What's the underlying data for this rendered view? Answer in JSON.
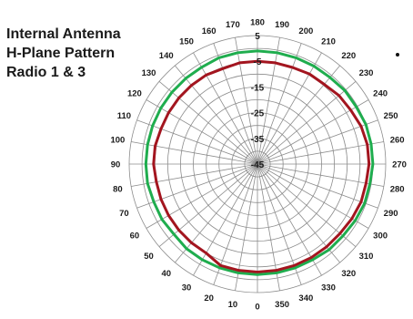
{
  "title_lines": [
    "Internal Antenna",
    "H-Plane Pattern",
    "Radio 1 & 3"
  ],
  "colors": {
    "background": "#ffffff",
    "grid": "#8c8c8c",
    "text": "#1a1a1a",
    "series_outer": "#1fad4e",
    "series_inner": "#a3151f"
  },
  "chart_data": {
    "type": "polar-line",
    "title": "Internal Antenna H-Plane Pattern Radio 1 & 3",
    "angle_unit": "degrees",
    "angle_orientation": "0 at bottom, 180 at top, increasing clockwise on screen",
    "angle_ticks": [
      0,
      10,
      20,
      30,
      40,
      50,
      60,
      70,
      80,
      90,
      100,
      110,
      120,
      130,
      140,
      150,
      160,
      170,
      180,
      190,
      200,
      210,
      220,
      230,
      240,
      250,
      260,
      270,
      280,
      290,
      300,
      310,
      320,
      330,
      340,
      350
    ],
    "angle_tick_labels": [
      "0",
      "10",
      "20",
      "30",
      "40",
      "50",
      "60",
      "70",
      "80",
      "90",
      "100",
      "110",
      "120",
      "130",
      "140",
      "150",
      "160",
      "170",
      "180",
      "190",
      "200",
      "210",
      "220",
      "230",
      "240",
      "250",
      "260",
      "270",
      "280",
      "290",
      "300",
      "310",
      "320",
      "330",
      "340",
      "350"
    ],
    "radial_ticks": [
      -45,
      -35,
      -25,
      -15,
      -5,
      5
    ],
    "radial_tick_labels": [
      "-45",
      "-35",
      "-25",
      "-15",
      "-5",
      "5"
    ],
    "r_range": [
      -45,
      5
    ],
    "grid": true,
    "series": [
      {
        "color": "#1fad4e",
        "angles": [
          0,
          10,
          20,
          30,
          40,
          50,
          60,
          70,
          80,
          90,
          100,
          110,
          120,
          130,
          140,
          150,
          160,
          170,
          180,
          190,
          200,
          210,
          220,
          230,
          240,
          250,
          260,
          270,
          280,
          290,
          300,
          310,
          320,
          330,
          340,
          350
        ],
        "values": [
          -2,
          -2,
          -2,
          -2,
          -2,
          -2.5,
          -2,
          -2,
          -1.5,
          -1.5,
          -1.5,
          -1.5,
          -1.5,
          -1.5,
          -1.5,
          -1.5,
          -1,
          -1,
          -1,
          -1,
          -1,
          -1,
          -1,
          -0.5,
          -0.5,
          0,
          0,
          0,
          -0.5,
          -0.5,
          -1,
          -1.5,
          -1.5,
          -2,
          -2,
          -2
        ]
      },
      {
        "color": "#a3151f",
        "angles": [
          0,
          10,
          20,
          30,
          40,
          50,
          60,
          70,
          80,
          90,
          100,
          110,
          120,
          130,
          140,
          150,
          160,
          170,
          180,
          190,
          200,
          210,
          220,
          230,
          240,
          250,
          260,
          270,
          280,
          290,
          300,
          310,
          320,
          330,
          340,
          350
        ],
        "values": [
          -3,
          -3,
          -3,
          -5,
          -5,
          -5,
          -5,
          -5,
          -5,
          -4.5,
          -4.5,
          -5,
          -5,
          -5,
          -5,
          -5,
          -5.5,
          -5,
          -5,
          -5,
          -5,
          -4.5,
          -4.5,
          -3.5,
          -3,
          -2,
          -1.5,
          -1.5,
          -2,
          -2,
          -2.5,
          -3,
          -3,
          -3,
          -3,
          -3
        ]
      }
    ]
  }
}
